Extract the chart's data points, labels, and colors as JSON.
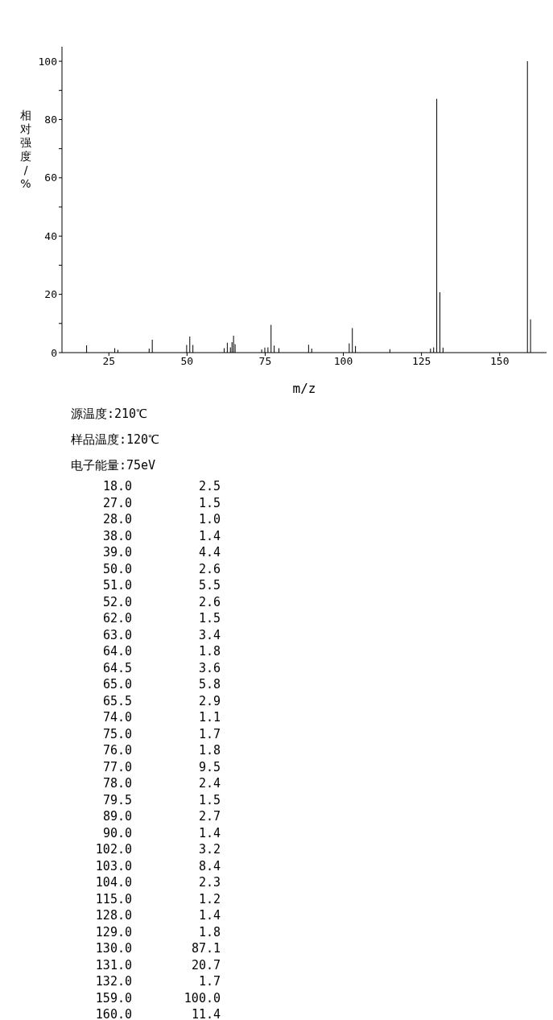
{
  "chart_data": {
    "type": "bar",
    "xlabel": "m/z",
    "ylabel": "相对强度/%",
    "x": [
      18,
      27,
      28,
      38,
      39,
      50,
      51,
      52,
      62,
      63,
      64,
      64.5,
      65,
      65.5,
      74,
      75,
      76,
      77,
      78,
      79.5,
      89,
      90,
      102,
      103,
      104,
      115,
      128,
      129,
      130,
      131,
      132,
      159,
      160
    ],
    "values": [
      2.5,
      1.5,
      1.0,
      1.4,
      4.4,
      2.6,
      5.5,
      2.6,
      1.5,
      3.4,
      1.8,
      3.6,
      5.8,
      2.9,
      1.1,
      1.7,
      1.8,
      9.5,
      2.4,
      1.5,
      2.7,
      1.4,
      3.2,
      8.4,
      2.3,
      1.2,
      1.4,
      1.8,
      87.1,
      20.7,
      1.7,
      100.0,
      11.4
    ],
    "color": "#000000",
    "xlim": [
      10,
      165
    ],
    "ylim": [
      0,
      105
    ],
    "xticks": [
      25,
      50,
      75,
      100,
      125,
      150
    ],
    "yticks": [
      0,
      {
        "value": 10,
        "label": null
      },
      20,
      {
        "value": 30,
        "label": null
      },
      40,
      {
        "value": 50,
        "label": null
      },
      60,
      {
        "value": 70,
        "label": null
      },
      80,
      {
        "value": 90,
        "label": null
      },
      100
    ],
    "grid": false,
    "legend": false,
    "annotations": [
      "源温度:210℃",
      "样品温度:120℃",
      "电子能量:75eV",
      "18.0",
      "2.5",
      "27.0",
      "1.5",
      "28.0",
      "1.0",
      "38.0",
      "1.4",
      "39.0",
      "4.4",
      "50.0",
      "2.6",
      "51.0",
      "5.5",
      "52.0",
      "2.6",
      "62.0",
      "1.5",
      "63.0",
      "3.4",
      "64.0",
      "1.8",
      "64.5",
      "3.6",
      "65.0",
      "5.8",
      "65.5",
      "2.9",
      "74.0",
      "1.1",
      "75.0",
      "1.7",
      "76.0",
      "1.8",
      "77.0",
      "9.5",
      "78.0",
      "2.4",
      "79.5",
      "1.5",
      "89.0",
      "2.7",
      "90.0",
      "1.4",
      "102.0",
      "3.2",
      "103.0",
      "8.4",
      "104.0",
      "2.3",
      "115.0",
      "1.2",
      "128.0",
      "1.4",
      "129.0",
      "1.8",
      "130.0",
      "87.1",
      "131.0",
      "20.7",
      "132.0",
      "1.7",
      "159.0",
      "100.0",
      "160.0",
      "11.4"
    ]
  }
}
